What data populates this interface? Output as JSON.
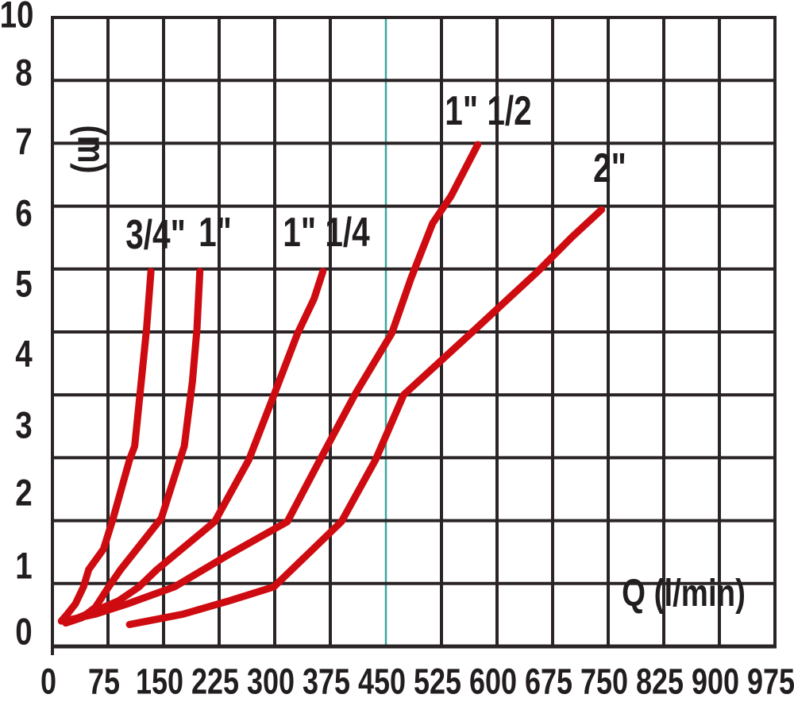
{
  "chart_data": {
    "type": "line",
    "xlabel": "Q (l/min)",
    "ylabel": "(m)",
    "xlim": [
      0,
      975
    ],
    "ylim": [
      0,
      10
    ],
    "grid": true,
    "x_ticks": [
      0,
      75,
      150,
      225,
      300,
      375,
      450,
      525,
      600,
      675,
      750,
      825,
      900,
      975
    ],
    "x_tick_labels": [
      "0",
      "75",
      "150",
      "225",
      "300",
      "375",
      "450",
      "525",
      "600",
      "675",
      "750",
      "825",
      "900",
      "975"
    ],
    "y_tick_labels": [
      "10",
      "8",
      "7",
      "6",
      "5",
      "4",
      "3",
      "2",
      "1",
      "0"
    ],
    "highlight_x": 450,
    "colors": {
      "curve": "#ce0b10",
      "grid": "#2b2427",
      "text": "#221e20",
      "highlight_line": "#3ba79d",
      "background": "#ffffff"
    },
    "series": [
      {
        "name": "3/4\"",
        "label": "3/4\"",
        "label_pos": {
          "q": 139,
          "m": 5.78
        },
        "points": [
          [
            12,
            0.15
          ],
          [
            20,
            0.25
          ],
          [
            31,
            0.4
          ],
          [
            42,
            0.65
          ],
          [
            49,
            0.9
          ],
          [
            69,
            1.2
          ],
          [
            82,
            1.65
          ],
          [
            104,
            2.5
          ],
          [
            111,
            2.7
          ],
          [
            119,
            3.55
          ],
          [
            127,
            4.4
          ],
          [
            133,
            5.25
          ]
        ]
      },
      {
        "name": "1\"",
        "label": "1\"",
        "label_pos": {
          "q": 220,
          "m": 5.81
        },
        "points": [
          [
            18,
            0.12
          ],
          [
            40,
            0.2
          ],
          [
            58,
            0.35
          ],
          [
            76,
            0.65
          ],
          [
            92,
            0.9
          ],
          [
            147,
            1.65
          ],
          [
            172,
            2.5
          ],
          [
            178,
            2.7
          ],
          [
            189,
            3.65
          ],
          [
            195,
            4.4
          ],
          [
            199,
            5.25
          ]
        ]
      },
      {
        "name": "1\" 1/4",
        "label": "1\" 1/4",
        "label_pos": {
          "q": 370,
          "m": 5.81
        },
        "points": [
          [
            24,
            0.15
          ],
          [
            58,
            0.3
          ],
          [
            90,
            0.45
          ],
          [
            117,
            0.65
          ],
          [
            141,
            0.9
          ],
          [
            219,
            1.6
          ],
          [
            265,
            2.5
          ],
          [
            299,
            3.45
          ],
          [
            331,
            4.35
          ],
          [
            353,
            4.85
          ],
          [
            365,
            5.25
          ]
        ]
      },
      {
        "name": "1\" 1/2",
        "label": "1\" 1/2",
        "label_pos": {
          "q": 588,
          "m": 7.59
        },
        "points": [
          [
            15,
            0.15
          ],
          [
            58,
            0.25
          ],
          [
            101,
            0.4
          ],
          [
            165,
            0.65
          ],
          [
            235,
            1.1
          ],
          [
            317,
            1.6
          ],
          [
            361,
            2.5
          ],
          [
            408,
            3.45
          ],
          [
            458,
            4.35
          ],
          [
            484,
            5.15
          ],
          [
            513,
            5.95
          ],
          [
            538,
            6.35
          ],
          [
            574,
            7.1
          ]
        ]
      },
      {
        "name": "2\"",
        "label": "2\"",
        "label_pos": {
          "q": 752,
          "m": 6.75
        },
        "points": [
          [
            104,
            0.1
          ],
          [
            176,
            0.25
          ],
          [
            240,
            0.45
          ],
          [
            299,
            0.65
          ],
          [
            390,
            1.6
          ],
          [
            436,
            2.5
          ],
          [
            474,
            3.45
          ],
          [
            565,
            4.35
          ],
          [
            655,
            5.25
          ],
          [
            701,
            5.75
          ],
          [
            741,
            6.15
          ]
        ]
      }
    ]
  }
}
